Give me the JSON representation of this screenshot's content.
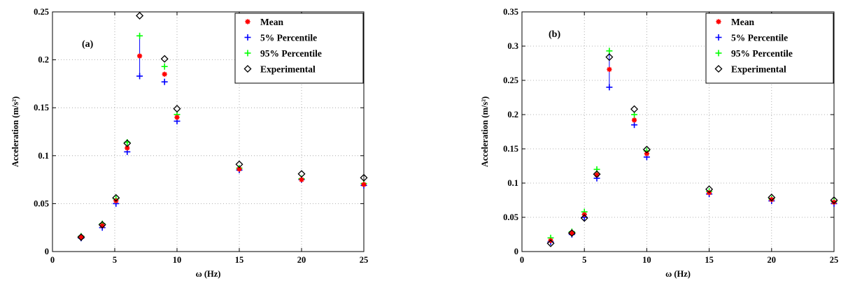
{
  "colors": {
    "mean": "#ff0000",
    "p5": "#0000ff",
    "p95": "#00ff00",
    "experimental": "#000000",
    "errorbar": "#0000ff",
    "grid": "#9a9a9a"
  },
  "chart_data": [
    {
      "type": "scatter",
      "panel_label": "(a)",
      "xlabel": "ω (Hz)",
      "ylabel": "Acceleration (m/s²)",
      "xlim": [
        0,
        25
      ],
      "ylim": [
        0,
        0.25
      ],
      "x_ticks": [
        0,
        5,
        10,
        15,
        20,
        25
      ],
      "y_ticks": [
        0,
        0.05,
        0.1,
        0.15,
        0.2,
        0.25
      ],
      "x_tick_labels": [
        "0",
        "5",
        "10",
        "15",
        "20",
        "25"
      ],
      "y_tick_labels": [
        "0",
        "0.05",
        "0.1",
        "0.15",
        "0.2",
        "0.25"
      ],
      "grid": true,
      "legend_position": "top-right",
      "x": [
        2.3,
        4,
        5.1,
        6,
        7,
        9,
        10,
        15,
        20,
        25
      ],
      "series": [
        {
          "name": "Mean",
          "marker": "star",
          "color": "#ff0000",
          "values": [
            0.015,
            0.027,
            0.053,
            0.108,
            0.204,
            0.185,
            0.14,
            0.086,
            0.075,
            0.07
          ]
        },
        {
          "name": "5% Percentile",
          "marker": "plus",
          "color": "#0000ff",
          "values": [
            0.014,
            0.025,
            0.05,
            0.104,
            0.183,
            0.177,
            0.136,
            0.085,
            0.075,
            0.069
          ]
        },
        {
          "name": "95% Percentile",
          "marker": "plus",
          "color": "#00ff00",
          "values": [
            0.016,
            0.029,
            0.055,
            0.114,
            0.225,
            0.193,
            0.143,
            0.087,
            0.076,
            0.071
          ]
        },
        {
          "name": "Experimental",
          "marker": "diamond",
          "color": "#000000",
          "values": [
            0.015,
            0.028,
            0.056,
            0.113,
            0.246,
            0.201,
            0.149,
            0.091,
            0.081,
            0.077
          ]
        }
      ]
    },
    {
      "type": "scatter",
      "panel_label": "(b)",
      "xlabel": "ω (Hz)",
      "ylabel": "Acceleration (m/s²)",
      "xlim": [
        0,
        25
      ],
      "ylim": [
        0,
        0.35
      ],
      "x_ticks": [
        0,
        5,
        10,
        15,
        20,
        25
      ],
      "y_ticks": [
        0,
        0.05,
        0.1,
        0.15,
        0.2,
        0.25,
        0.3,
        0.35
      ],
      "x_tick_labels": [
        "0",
        "5",
        "10",
        "15",
        "20",
        "25"
      ],
      "y_tick_labels": [
        "0",
        "0.05",
        "0.1",
        "0.15",
        "0.2",
        "0.25",
        "0.3",
        "0.35"
      ],
      "grid": true,
      "legend_position": "top-right",
      "x": [
        2.3,
        4,
        5,
        6,
        7,
        9,
        10,
        15,
        20,
        25
      ],
      "series": [
        {
          "name": "Mean",
          "marker": "star",
          "color": "#ff0000",
          "values": [
            0.016,
            0.027,
            0.054,
            0.112,
            0.266,
            0.192,
            0.143,
            0.086,
            0.076,
            0.072
          ]
        },
        {
          "name": "5% Percentile",
          "marker": "plus",
          "color": "#0000ff",
          "values": [
            0.014,
            0.025,
            0.05,
            0.107,
            0.24,
            0.185,
            0.138,
            0.084,
            0.074,
            0.07
          ]
        },
        {
          "name": "95% Percentile",
          "marker": "plus",
          "color": "#00ff00",
          "values": [
            0.02,
            0.029,
            0.058,
            0.12,
            0.293,
            0.2,
            0.147,
            0.088,
            0.077,
            0.073
          ]
        },
        {
          "name": "Experimental",
          "marker": "diamond",
          "color": "#000000",
          "values": [
            0.012,
            0.027,
            0.049,
            0.113,
            0.284,
            0.208,
            0.149,
            0.091,
            0.079,
            0.075
          ]
        }
      ]
    }
  ]
}
